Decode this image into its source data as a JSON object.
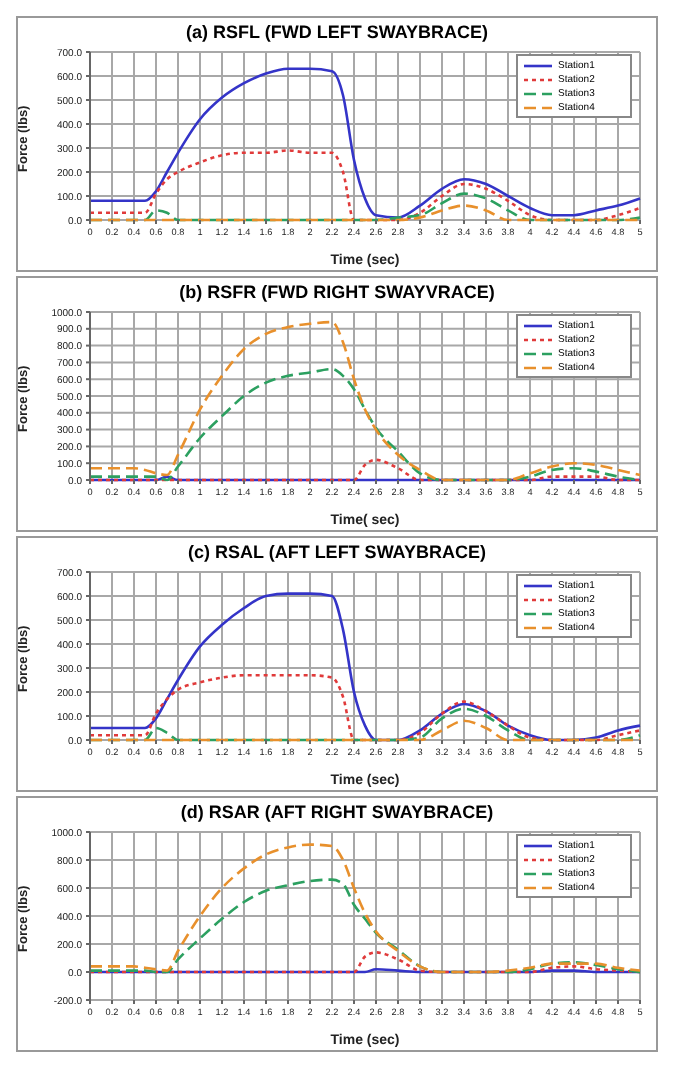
{
  "chart_data": [
    {
      "type": "line",
      "title": "(a) RSFL (FWD LEFT SWAYBRACE)",
      "xlabel": "Time (sec)",
      "ylabel": "Force (lbs)",
      "xlim": [
        0,
        5
      ],
      "xticks": [
        0,
        0.2,
        0.4,
        0.6,
        0.8,
        1,
        1.2,
        1.4,
        1.6,
        1.8,
        2,
        2.2,
        2.4,
        2.6,
        2.8,
        3,
        3.2,
        3.4,
        3.6,
        3.8,
        4,
        4.2,
        4.4,
        4.6,
        4.8,
        5
      ],
      "ylim": [
        0,
        700
      ],
      "yticks": [
        {
          "value": 0,
          "label": "0.0"
        },
        {
          "value": 100,
          "label": "100.0"
        },
        {
          "value": 200,
          "label": "200.0"
        },
        {
          "value": 300,
          "label": "300.0"
        },
        {
          "value": 400,
          "label": "400.0"
        },
        {
          "value": 500,
          "label": "500.0"
        },
        {
          "value": 600,
          "label": "600.0"
        },
        {
          "value": 700,
          "label": "700.0"
        }
      ],
      "grid": true,
      "legend": "top right",
      "marker": "none",
      "x": [
        0,
        0.2,
        0.4,
        0.5,
        0.6,
        0.7,
        0.8,
        1,
        1.2,
        1.4,
        1.6,
        1.8,
        2,
        2.2,
        2.3,
        2.4,
        2.5,
        2.6,
        2.8,
        3,
        3.2,
        3.4,
        3.6,
        3.8,
        4,
        4.2,
        4.4,
        4.6,
        4.8,
        5
      ],
      "series": [
        {
          "name": "Station1",
          "color": "#3434c8",
          "line_style": "solid",
          "values": [
            80,
            80,
            80,
            80,
            120,
            200,
            280,
            420,
            510,
            570,
            610,
            630,
            630,
            620,
            520,
            250,
            90,
            20,
            10,
            60,
            130,
            170,
            150,
            100,
            50,
            20,
            20,
            40,
            60,
            90
          ]
        },
        {
          "name": "Station2",
          "color": "#e03a3a",
          "line_style": "dotted",
          "values": [
            30,
            30,
            30,
            30,
            110,
            170,
            200,
            240,
            270,
            280,
            280,
            290,
            280,
            280,
            200,
            0,
            0,
            0,
            0,
            30,
            100,
            150,
            130,
            80,
            20,
            0,
            0,
            0,
            20,
            50
          ]
        },
        {
          "name": "Station3",
          "color": "#2ca060",
          "line_style": "dashed",
          "values": [
            0,
            0,
            0,
            0,
            40,
            30,
            0,
            0,
            0,
            0,
            0,
            0,
            0,
            0,
            0,
            0,
            0,
            0,
            10,
            20,
            70,
            110,
            90,
            40,
            0,
            0,
            0,
            0,
            0,
            10
          ]
        },
        {
          "name": "Station4",
          "color": "#e8902c",
          "line_style": "dashed",
          "values": [
            0,
            0,
            0,
            0,
            0,
            0,
            0,
            0,
            0,
            0,
            0,
            0,
            0,
            0,
            0,
            0,
            0,
            0,
            0,
            10,
            40,
            60,
            40,
            0,
            0,
            0,
            0,
            0,
            0,
            0
          ]
        }
      ]
    },
    {
      "type": "line",
      "title": "(b) RSFR (FWD RIGHT SWAYVRACE)",
      "xlabel": "Time( sec)",
      "ylabel": "Force (lbs)",
      "xlim": [
        0,
        5
      ],
      "xticks": [
        0,
        0.2,
        0.4,
        0.6,
        0.8,
        1,
        1.2,
        1.4,
        1.6,
        1.8,
        2,
        2.2,
        2.4,
        2.6,
        2.8,
        3,
        3.2,
        3.4,
        3.6,
        3.8,
        4,
        4.2,
        4.4,
        4.6,
        4.8,
        5
      ],
      "ylim": [
        0,
        1000
      ],
      "yticks": [
        {
          "value": 0,
          "label": "0.0"
        },
        {
          "value": 100,
          "label": "100.0"
        },
        {
          "value": 200,
          "label": "200.0"
        },
        {
          "value": 300,
          "label": "300.0"
        },
        {
          "value": 400,
          "label": "400.0"
        },
        {
          "value": 500,
          "label": "500.0"
        },
        {
          "value": 600,
          "label": "600.0"
        },
        {
          "value": 700,
          "label": "700.0"
        },
        {
          "value": 800,
          "label": "800.0"
        },
        {
          "value": 900,
          "label": "900.0"
        },
        {
          "value": 1000,
          "label": "1000.0"
        }
      ],
      "grid": true,
      "legend": "top right",
      "marker": "none",
      "x": [
        0,
        0.2,
        0.4,
        0.5,
        0.6,
        0.7,
        0.8,
        1,
        1.2,
        1.4,
        1.6,
        1.8,
        2,
        2.2,
        2.3,
        2.4,
        2.5,
        2.6,
        2.8,
        3,
        3.2,
        3.4,
        3.6,
        3.8,
        4,
        4.2,
        4.4,
        4.6,
        4.8,
        5
      ],
      "series": [
        {
          "name": "Station1",
          "color": "#3434c8",
          "line_style": "solid",
          "values": [
            0,
            0,
            0,
            0,
            0,
            20,
            0,
            0,
            0,
            0,
            0,
            0,
            0,
            0,
            0,
            0,
            0,
            0,
            0,
            0,
            0,
            0,
            0,
            0,
            0,
            0,
            0,
            0,
            0,
            0
          ]
        },
        {
          "name": "Station2",
          "color": "#e03a3a",
          "line_style": "dotted",
          "values": [
            0,
            0,
            0,
            0,
            0,
            0,
            0,
            0,
            0,
            0,
            0,
            0,
            0,
            0,
            0,
            0,
            90,
            120,
            70,
            0,
            0,
            0,
            0,
            0,
            0,
            20,
            20,
            20,
            0,
            0
          ]
        },
        {
          "name": "Station3",
          "color": "#2ca060",
          "line_style": "dashed",
          "values": [
            20,
            20,
            20,
            20,
            20,
            0,
            80,
            250,
            380,
            500,
            580,
            620,
            640,
            660,
            620,
            540,
            420,
            310,
            170,
            40,
            0,
            0,
            0,
            0,
            20,
            60,
            70,
            50,
            20,
            0
          ]
        },
        {
          "name": "Station4",
          "color": "#e8902c",
          "line_style": "dashed",
          "values": [
            70,
            70,
            70,
            60,
            40,
            30,
            150,
            420,
            620,
            780,
            870,
            910,
            930,
            940,
            820,
            600,
            420,
            300,
            150,
            60,
            0,
            0,
            0,
            0,
            40,
            80,
            100,
            90,
            60,
            30
          ]
        }
      ]
    },
    {
      "type": "line",
      "title": "(c) RSAL (AFT LEFT SWAYBRACE)",
      "xlabel": "Time (sec)",
      "ylabel": "Force (lbs)",
      "xlim": [
        0,
        5
      ],
      "xticks": [
        0,
        0.2,
        0.4,
        0.6,
        0.8,
        1,
        1.2,
        1.4,
        1.6,
        1.8,
        2,
        2.2,
        2.4,
        2.6,
        2.8,
        3,
        3.2,
        3.4,
        3.6,
        3.8,
        4,
        4.2,
        4.4,
        4.6,
        4.8,
        5
      ],
      "ylim": [
        0,
        700
      ],
      "yticks": [
        {
          "value": 0,
          "label": "0.0"
        },
        {
          "value": 100,
          "label": "100.0"
        },
        {
          "value": 200,
          "label": "200.0"
        },
        {
          "value": 300,
          "label": "300.0"
        },
        {
          "value": 400,
          "label": "400.0"
        },
        {
          "value": 500,
          "label": "500.0"
        },
        {
          "value": 600,
          "label": "600.0"
        },
        {
          "value": 700,
          "label": "700.0"
        }
      ],
      "grid": true,
      "legend": "top right",
      "marker": "none",
      "x": [
        0,
        0.2,
        0.4,
        0.5,
        0.6,
        0.7,
        0.8,
        1,
        1.2,
        1.4,
        1.6,
        1.8,
        2,
        2.2,
        2.3,
        2.4,
        2.5,
        2.6,
        2.8,
        3,
        3.2,
        3.4,
        3.6,
        3.8,
        4,
        4.2,
        4.4,
        4.6,
        4.8,
        5
      ],
      "series": [
        {
          "name": "Station1",
          "color": "#3434c8",
          "line_style": "solid",
          "values": [
            50,
            50,
            50,
            50,
            90,
            170,
            250,
            390,
            480,
            550,
            600,
            610,
            610,
            600,
            460,
            200,
            60,
            0,
            0,
            40,
            110,
            150,
            120,
            60,
            20,
            0,
            0,
            10,
            40,
            60
          ]
        },
        {
          "name": "Station2",
          "color": "#e03a3a",
          "line_style": "dotted",
          "values": [
            20,
            20,
            20,
            20,
            110,
            170,
            210,
            240,
            260,
            270,
            270,
            270,
            270,
            260,
            180,
            0,
            0,
            0,
            0,
            30,
            110,
            160,
            120,
            60,
            10,
            0,
            0,
            0,
            20,
            40
          ]
        },
        {
          "name": "Station3",
          "color": "#2ca060",
          "line_style": "dashed",
          "values": [
            0,
            0,
            0,
            0,
            50,
            30,
            0,
            0,
            0,
            0,
            0,
            0,
            0,
            0,
            0,
            0,
            0,
            0,
            0,
            10,
            90,
            130,
            100,
            40,
            0,
            0,
            0,
            0,
            0,
            20
          ]
        },
        {
          "name": "Station4",
          "color": "#e8902c",
          "line_style": "dashed",
          "values": [
            0,
            0,
            0,
            0,
            0,
            0,
            0,
            0,
            0,
            0,
            0,
            0,
            0,
            0,
            0,
            0,
            0,
            0,
            0,
            0,
            40,
            80,
            50,
            0,
            0,
            0,
            0,
            0,
            0,
            0
          ]
        }
      ]
    },
    {
      "type": "line",
      "title": "(d) RSAR (AFT RIGHT SWAYBRACE)",
      "xlabel": "Time (sec)",
      "ylabel": "Force (lbs)",
      "xlim": [
        0,
        5
      ],
      "xticks": [
        0,
        0.2,
        0.4,
        0.6,
        0.8,
        1,
        1.2,
        1.4,
        1.6,
        1.8,
        2,
        2.2,
        2.4,
        2.6,
        2.8,
        3,
        3.2,
        3.4,
        3.6,
        3.8,
        4,
        4.2,
        4.4,
        4.6,
        4.8,
        5
      ],
      "ylim": [
        -200,
        1000
      ],
      "yticks": [
        {
          "value": -200,
          "label": "-200.0"
        },
        {
          "value": 0,
          "label": "0.0"
        },
        {
          "value": 200,
          "label": "200.0"
        },
        {
          "value": 400,
          "label": "400.0"
        },
        {
          "value": 600,
          "label": "600.0"
        },
        {
          "value": 800,
          "label": "800.0"
        },
        {
          "value": 1000,
          "label": "1000.0"
        }
      ],
      "grid": true,
      "legend": "top right",
      "marker": "none",
      "x": [
        0,
        0.2,
        0.4,
        0.5,
        0.6,
        0.7,
        0.8,
        1,
        1.2,
        1.4,
        1.6,
        1.8,
        2,
        2.2,
        2.3,
        2.4,
        2.5,
        2.6,
        2.8,
        3,
        3.2,
        3.4,
        3.6,
        3.8,
        4,
        4.2,
        4.4,
        4.6,
        4.8,
        5
      ],
      "series": [
        {
          "name": "Station1",
          "color": "#3434c8",
          "line_style": "solid",
          "values": [
            0,
            0,
            0,
            0,
            0,
            0,
            0,
            0,
            0,
            0,
            0,
            0,
            0,
            0,
            0,
            0,
            0,
            20,
            10,
            0,
            0,
            0,
            0,
            0,
            0,
            10,
            10,
            0,
            0,
            0
          ]
        },
        {
          "name": "Station2",
          "color": "#e03a3a",
          "line_style": "dotted",
          "values": [
            0,
            0,
            0,
            0,
            0,
            0,
            0,
            0,
            0,
            0,
            0,
            0,
            0,
            0,
            0,
            0,
            110,
            140,
            90,
            10,
            0,
            0,
            0,
            0,
            0,
            30,
            40,
            20,
            10,
            0
          ]
        },
        {
          "name": "Station3",
          "color": "#2ca060",
          "line_style": "dashed",
          "values": [
            10,
            10,
            10,
            10,
            0,
            0,
            90,
            240,
            380,
            500,
            580,
            620,
            650,
            660,
            630,
            480,
            380,
            280,
            160,
            40,
            0,
            0,
            0,
            0,
            20,
            60,
            70,
            50,
            20,
            0
          ]
        },
        {
          "name": "Station4",
          "color": "#e8902c",
          "line_style": "dashed",
          "values": [
            40,
            40,
            40,
            30,
            20,
            10,
            150,
            400,
            600,
            740,
            840,
            890,
            910,
            900,
            800,
            600,
            420,
            290,
            150,
            40,
            0,
            0,
            0,
            10,
            30,
            60,
            60,
            60,
            30,
            10
          ]
        }
      ]
    }
  ]
}
